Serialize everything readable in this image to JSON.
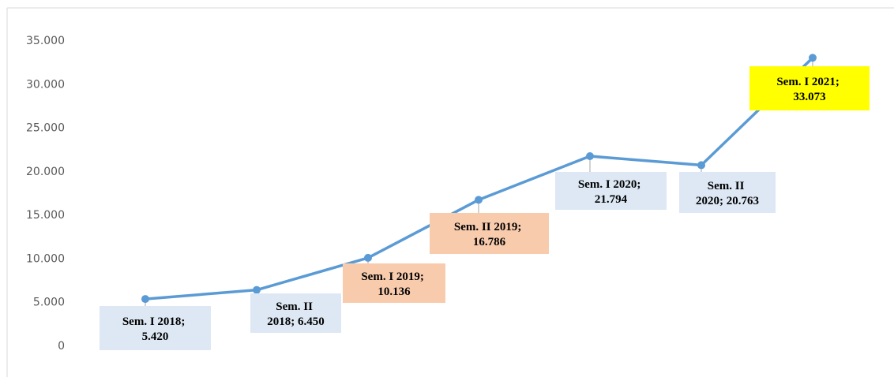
{
  "chart_data": {
    "type": "line",
    "categories": [
      "Sem. I 2018",
      "Sem. II 2018",
      "Sem. I 2019",
      "Sem. II 2019",
      "Sem. I 2020",
      "Sem. II 2020",
      "Sem. I 2021"
    ],
    "series": [
      {
        "color": "#5b9bd5",
        "values": [
          5420,
          6450,
          10136,
          16786,
          21794,
          20763,
          33073
        ]
      }
    ],
    "value_labels": [
      "Sem. I 2018; 5.420",
      "Sem. II 2018; 6.450",
      "Sem. I 2019; 10.136",
      "Sem. II 2019; 16.786",
      "Sem. I 2020; 21.794",
      "Sem. II 2020; 20.763",
      "Sem. I 2021; 33.073"
    ],
    "label_colors": [
      "#dde8f4",
      "#dde8f4",
      "#f8cbad",
      "#f8cbad",
      "#dde8f4",
      "#dde8f4",
      "#ffff00"
    ],
    "ylim": [
      0,
      35000
    ],
    "yticks": [
      0,
      {
        "value": 5000,
        "label": "5.000"
      },
      {
        "value": 10000,
        "label": "10.000"
      },
      {
        "value": 15000,
        "label": "15.000"
      },
      {
        "value": 20000,
        "label": "20.000"
      },
      {
        "value": 25000,
        "label": "25.000"
      },
      {
        "value": 30000,
        "label": "30.000"
      },
      {
        "value": 35000,
        "label": "35.000"
      }
    ],
    "grid": false
  }
}
